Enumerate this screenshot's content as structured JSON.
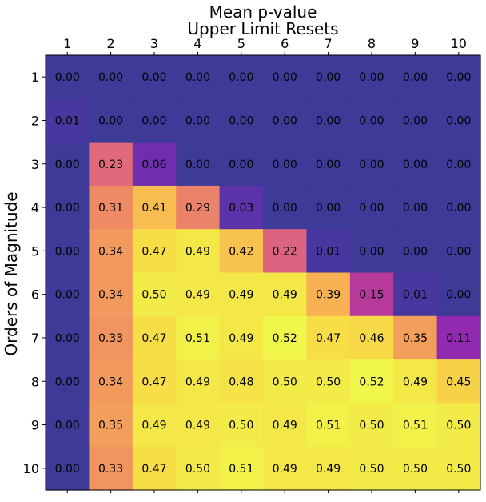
{
  "chart_data": {
    "type": "heatmap",
    "title": "Mean p-value",
    "xlabel": "Upper Limit Resets",
    "ylabel": "Orders of Magnitude",
    "x_categories": [
      "1",
      "2",
      "3",
      "4",
      "5",
      "6",
      "7",
      "8",
      "9",
      "10"
    ],
    "y_categories": [
      "1",
      "2",
      "3",
      "4",
      "5",
      "6",
      "7",
      "8",
      "9",
      "10"
    ],
    "x_axis_position": "top",
    "colormap": "plasma",
    "value_range": [
      0,
      0.52
    ],
    "grid": false,
    "values": [
      [
        0.0,
        0.0,
        0.0,
        0.0,
        0.0,
        0.0,
        0.0,
        0.0,
        0.0,
        0.0
      ],
      [
        0.01,
        0.0,
        0.0,
        0.0,
        0.0,
        0.0,
        0.0,
        0.0,
        0.0,
        0.0
      ],
      [
        0.0,
        0.23,
        0.06,
        0.0,
        0.0,
        0.0,
        0.0,
        0.0,
        0.0,
        0.0
      ],
      [
        0.0,
        0.31,
        0.41,
        0.29,
        0.03,
        0.0,
        0.0,
        0.0,
        0.0,
        0.0
      ],
      [
        0.0,
        0.34,
        0.47,
        0.49,
        0.42,
        0.22,
        0.01,
        0.0,
        0.0,
        0.0
      ],
      [
        0.0,
        0.34,
        0.5,
        0.49,
        0.49,
        0.49,
        0.39,
        0.15,
        0.01,
        0.0
      ],
      [
        0.0,
        0.33,
        0.47,
        0.51,
        0.49,
        0.52,
        0.47,
        0.46,
        0.35,
        0.11
      ],
      [
        0.0,
        0.34,
        0.47,
        0.49,
        0.48,
        0.5,
        0.5,
        0.52,
        0.49,
        0.45
      ],
      [
        0.0,
        0.35,
        0.49,
        0.49,
        0.5,
        0.49,
        0.51,
        0.5,
        0.51,
        0.5
      ],
      [
        0.0,
        0.33,
        0.47,
        0.5,
        0.51,
        0.49,
        0.49,
        0.5,
        0.5,
        0.5
      ]
    ]
  }
}
